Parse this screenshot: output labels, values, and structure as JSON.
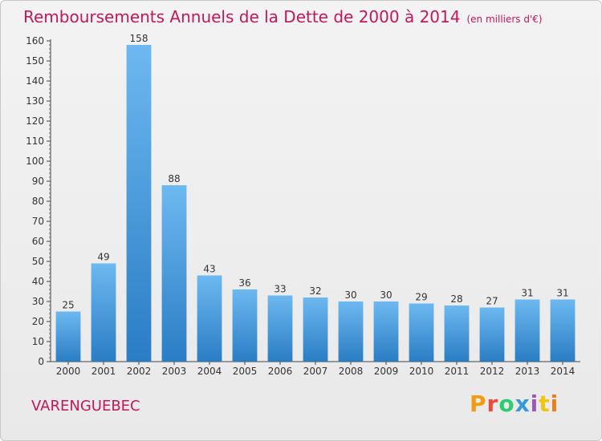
{
  "header": {
    "title": "Remboursements Annuels de la Dette de 2000 à 2014",
    "subtitle": "(en milliers d'€)"
  },
  "footer": {
    "commune": "VARENGUEBEC",
    "logo_text": "Proxiti"
  },
  "colors": {
    "title": "#c2185b",
    "bar_top": "#6db8f0",
    "bar_bottom": "#2a7dc4",
    "logo_letters": [
      "#f39c12",
      "#e74c3c",
      "#2ecc71",
      "#3498db",
      "#9b59b6",
      "#f1c40f",
      "#e67e22"
    ]
  },
  "chart_data": {
    "type": "bar",
    "title": "Remboursements Annuels de la Dette de 2000 à 2014",
    "subtitle": "(en milliers d'€)",
    "xlabel": "",
    "ylabel": "",
    "categories": [
      "2000",
      "2001",
      "2002",
      "2003",
      "2004",
      "2005",
      "2006",
      "2007",
      "2008",
      "2009",
      "2010",
      "2011",
      "2012",
      "2013",
      "2014"
    ],
    "values": [
      25,
      49,
      158,
      88,
      43,
      36,
      33,
      32,
      30,
      30,
      29,
      28,
      27,
      31,
      31
    ],
    "data_labels": [
      "25",
      "49",
      "158",
      "88",
      "43",
      "36",
      "33",
      "32",
      "30",
      "30",
      "29",
      "28",
      "27",
      "31",
      "31"
    ],
    "ylim": [
      0,
      160
    ],
    "yticks": [
      0,
      10,
      20,
      30,
      40,
      50,
      60,
      70,
      80,
      90,
      100,
      110,
      120,
      130,
      140,
      150,
      160
    ],
    "grid": false,
    "legend": "none"
  }
}
